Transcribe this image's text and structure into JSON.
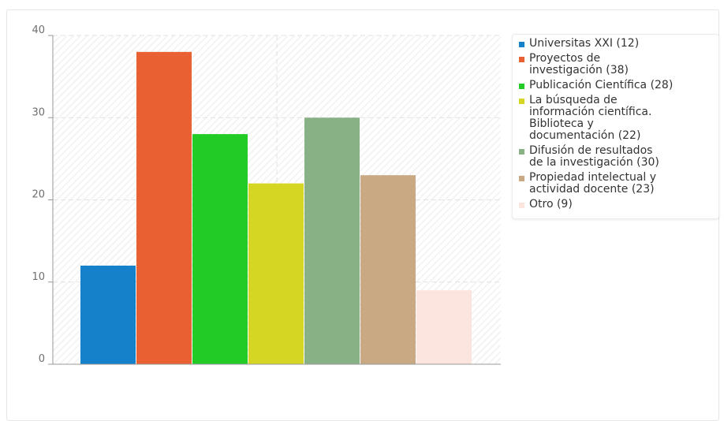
{
  "chart_data": {
    "type": "bar",
    "categories": [
      "Universitas XXI",
      "Proyectos de investigación",
      "Publicación Científica",
      "La búsqueda de información científica. Biblioteca y documentación",
      "Difusión de resultados de la investigación",
      "Propiedad intelectual y actividad docente",
      "Otro"
    ],
    "values": [
      12,
      38,
      28,
      22,
      30,
      23,
      9
    ],
    "colors": [
      "#1581cb",
      "#e96033",
      "#23cb27",
      "#d4d623",
      "#89b186",
      "#c8a983",
      "#fbe5de"
    ],
    "title": "",
    "xlabel": "",
    "ylabel": "",
    "ylim": [
      0,
      40
    ],
    "yticks": [
      "0",
      "10",
      "20",
      "30",
      "40"
    ],
    "grid": true,
    "legend_position": "right",
    "legend": [
      {
        "line1": "Universitas XXI (12)"
      },
      {
        "line1": "Proyectos de",
        "line2": "investigación (38)"
      },
      {
        "line1": "Publicación Científica (28)"
      },
      {
        "line1": "La búsqueda de",
        "line2": "información científica.",
        "line3": "Biblioteca y",
        "line4": "documentación (22)"
      },
      {
        "line1": "Difusión de resultados",
        "line2": "de la investigación (30)"
      },
      {
        "line1": "Propiedad intelectual y",
        "line2": "actividad docente (23)"
      },
      {
        "line1": "Otro (9)"
      }
    ]
  }
}
